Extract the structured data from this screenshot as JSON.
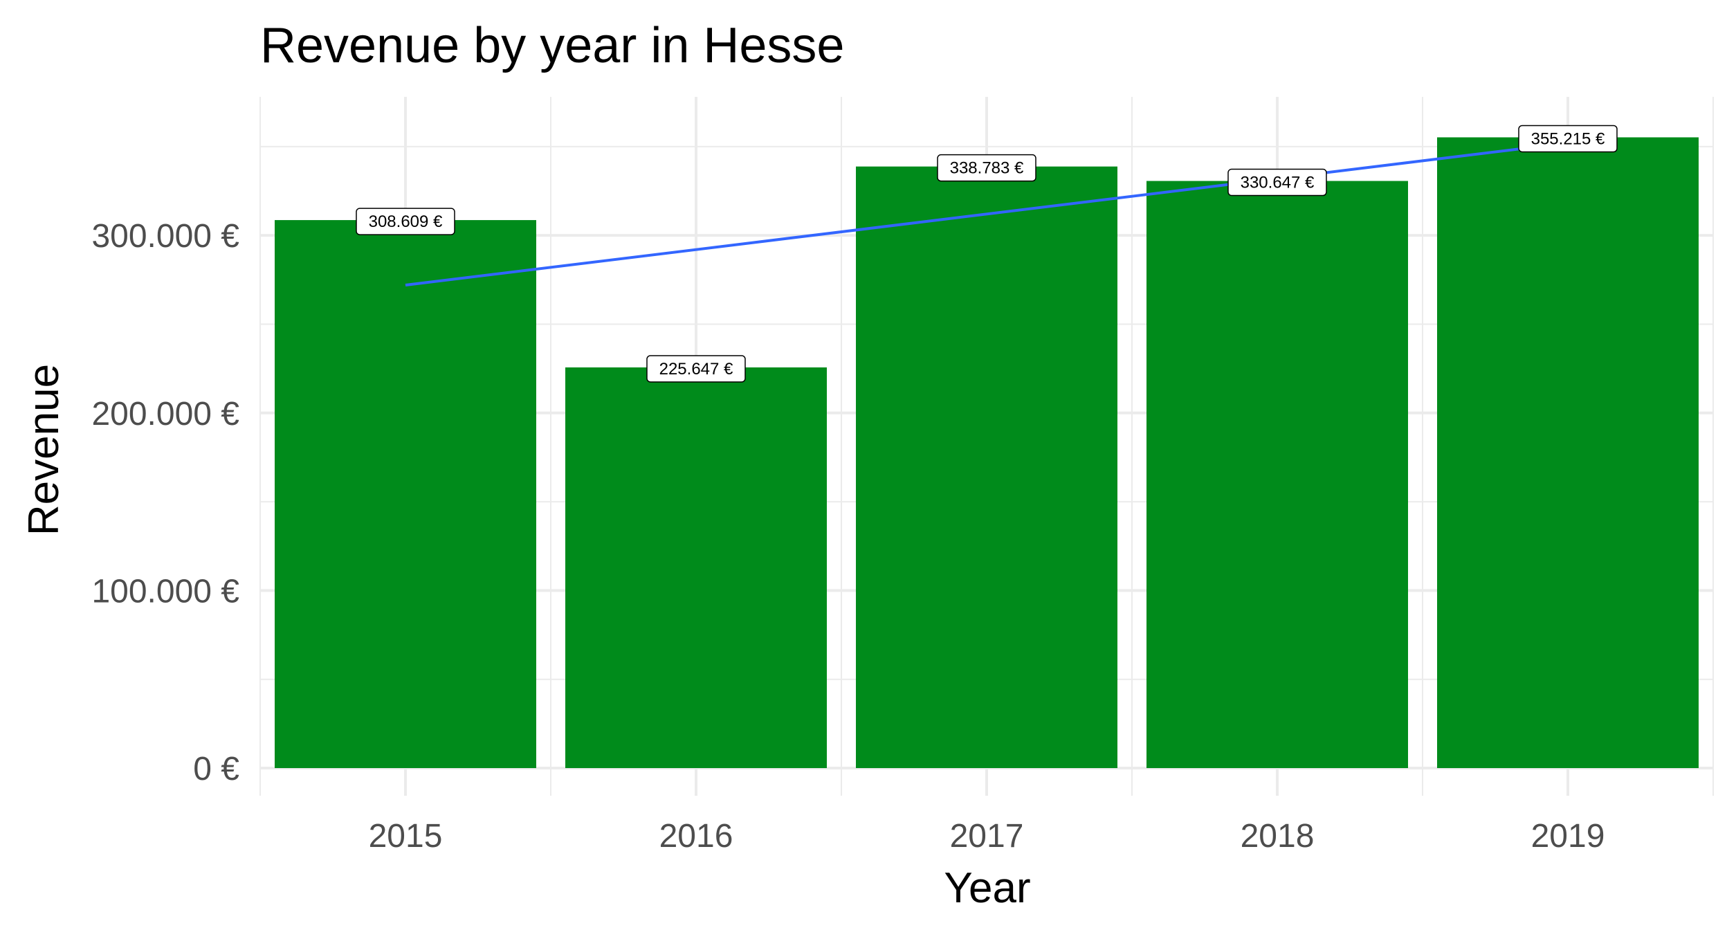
{
  "chart_data": {
    "type": "bar",
    "title": "Revenue by year in Hesse",
    "xlabel": "Year",
    "ylabel": "Revenue",
    "categories": [
      "2015",
      "2016",
      "2017",
      "2018",
      "2019"
    ],
    "values": [
      308609,
      225647,
      338783,
      330647,
      355215
    ],
    "data_labels": [
      "308.609 €",
      "225.647 €",
      "338.783 €",
      "330.647 €",
      "355.215 €"
    ],
    "yticks": [
      0,
      100000,
      200000,
      300000
    ],
    "ytick_labels": [
      "0 €",
      "100.000 €",
      "200.000 €",
      "300.000 €"
    ],
    "ylim": [
      0,
      378000
    ],
    "trend_line": {
      "start": 272000,
      "end": 352000
    },
    "grid": true,
    "bar_color": "#008b1b",
    "trend_color": "#3366ff"
  }
}
